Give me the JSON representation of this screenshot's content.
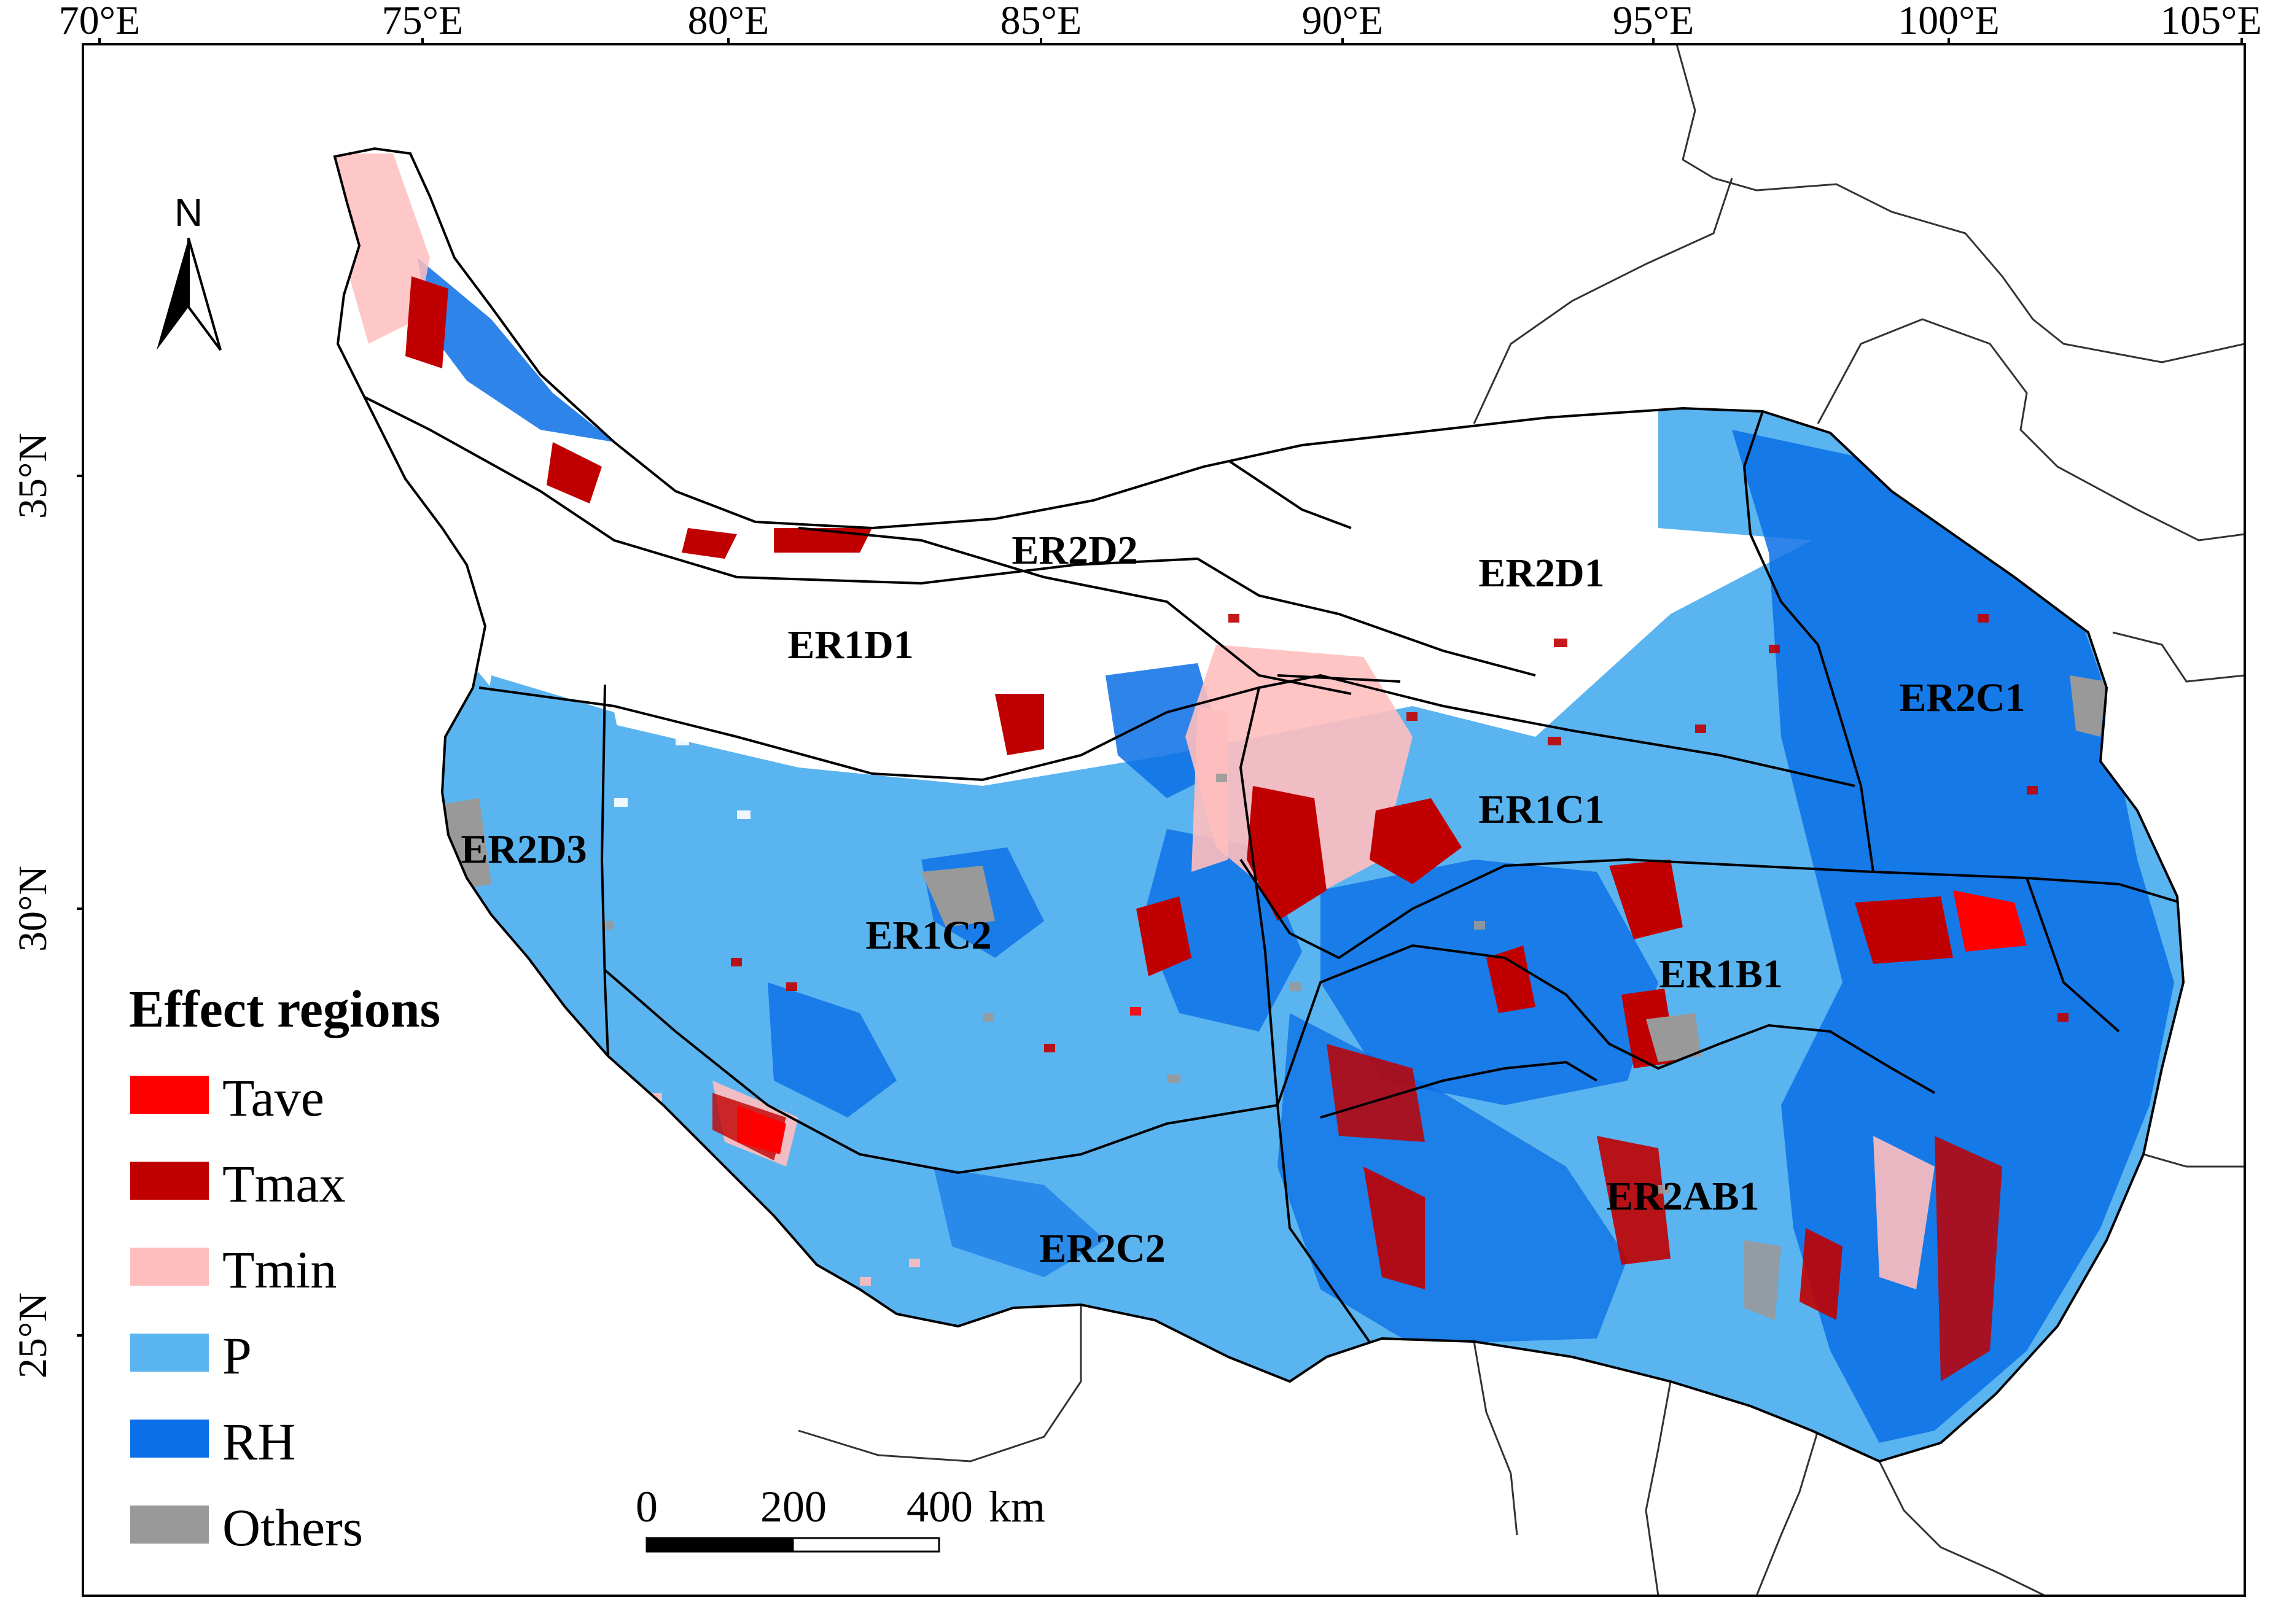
{
  "map": {
    "lon_ticks": [
      "70°E",
      "75°E",
      "80°E",
      "85°E",
      "90°E",
      "95°E",
      "100°E",
      "105°E"
    ],
    "lat_ticks": [
      "35°N",
      "30°N",
      "25°N"
    ],
    "north_arrow": {
      "label": "N",
      "icon": "north-arrow-icon"
    },
    "regions": [
      "ER2D2",
      "ER2D1",
      "ER1D1",
      "ER2C1",
      "ER1C1",
      "ER2D3",
      "ER1C2",
      "ER1B1",
      "ER2AB1",
      "ER2C2"
    ],
    "legend": {
      "title": "Effect regions",
      "items": [
        {
          "label": "Tave",
          "color": "#ff0000"
        },
        {
          "label": "Tmax",
          "color": "#c00000"
        },
        {
          "label": "Tmin",
          "color": "#ffbebe"
        },
        {
          "label": "P",
          "color": "#5ab4f0"
        },
        {
          "label": "RH",
          "color": "#0a6ee6"
        },
        {
          "label": "Others",
          "color": "#999999"
        }
      ]
    },
    "scale_bar": {
      "labels": [
        "0",
        "200",
        "400"
      ],
      "unit": "km"
    }
  }
}
